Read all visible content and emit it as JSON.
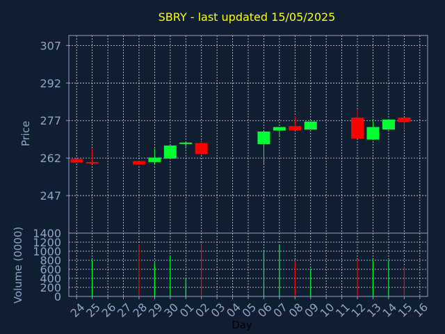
{
  "chart_data": [
    {
      "type": "candlestick",
      "title": "SBRY - last updated 15/05/2025",
      "ylabel": "Price",
      "ylim": [
        232,
        311
      ],
      "yticks": [
        247,
        262,
        277,
        292,
        307
      ],
      "grid": true,
      "categories": [
        "24",
        "25",
        "26",
        "27",
        "28",
        "29",
        "30",
        "01",
        "02",
        "03",
        "04",
        "05",
        "06",
        "07",
        "08",
        "09",
        "10",
        "11",
        "12",
        "13",
        "14",
        "15",
        "16"
      ],
      "candles": [
        {
          "day": "24",
          "open": 261.6,
          "high": 261.6,
          "low": 260.2,
          "close": 260.2
        },
        {
          "day": "25",
          "open": 260.4,
          "high": 265.8,
          "low": 259.6,
          "close": 260.0
        },
        {
          "day": "28",
          "open": 260.8,
          "high": 260.8,
          "low": 259.2,
          "close": 259.4
        },
        {
          "day": "29",
          "open": 260.4,
          "high": 265.8,
          "low": 259.8,
          "close": 262.2
        },
        {
          "day": "30",
          "open": 261.8,
          "high": 267.0,
          "low": 261.6,
          "close": 267.0
        },
        {
          "day": "01",
          "open": 267.8,
          "high": 268.6,
          "low": 265.8,
          "close": 268.2
        },
        {
          "day": "02",
          "open": 268.0,
          "high": 269.0,
          "low": 263.4,
          "close": 263.6
        },
        {
          "day": "06",
          "open": 267.6,
          "high": 272.6,
          "low": 259.8,
          "close": 272.6
        },
        {
          "day": "07",
          "open": 273.0,
          "high": 274.4,
          "low": 270.6,
          "close": 274.4
        },
        {
          "day": "08",
          "open": 274.8,
          "high": 278.8,
          "low": 273.0,
          "close": 273.0
        },
        {
          "day": "09",
          "open": 273.4,
          "high": 276.6,
          "low": 273.4,
          "close": 276.6
        },
        {
          "day": "12",
          "open": 278.2,
          "high": 281.6,
          "low": 269.8,
          "close": 269.8
        },
        {
          "day": "13",
          "open": 269.4,
          "high": 276.8,
          "low": 269.2,
          "close": 274.4
        },
        {
          "day": "14",
          "open": 273.4,
          "high": 277.6,
          "low": 273.4,
          "close": 277.4
        },
        {
          "day": "15",
          "open": 278.2,
          "high": 278.2,
          "low": 273.0,
          "close": 276.4
        }
      ]
    },
    {
      "type": "bar",
      "ylabel": "Volume (0000)",
      "xlabel": "Day",
      "ylim": [
        0,
        1400
      ],
      "yticks": [
        0,
        200,
        400,
        600,
        800,
        1000,
        1200,
        1400
      ],
      "grid": true,
      "categories": [
        "24",
        "25",
        "26",
        "27",
        "28",
        "29",
        "30",
        "01",
        "02",
        "03",
        "04",
        "05",
        "06",
        "07",
        "08",
        "09",
        "10",
        "11",
        "12",
        "13",
        "14",
        "15",
        "16"
      ],
      "values": [
        {
          "day": "25",
          "volume": 800,
          "direction": "up"
        },
        {
          "day": "28",
          "volume": 1150,
          "direction": "down"
        },
        {
          "day": "29",
          "volume": 750,
          "direction": "up"
        },
        {
          "day": "30",
          "volume": 900,
          "direction": "up"
        },
        {
          "day": "01",
          "volume": 420,
          "direction": "up"
        },
        {
          "day": "02",
          "volume": 1180,
          "direction": "down"
        },
        {
          "day": "06",
          "volume": 1030,
          "direction": "up"
        },
        {
          "day": "07",
          "volume": 1130,
          "direction": "up"
        },
        {
          "day": "08",
          "volume": 780,
          "direction": "down"
        },
        {
          "day": "09",
          "volume": 610,
          "direction": "up"
        },
        {
          "day": "12",
          "volume": 800,
          "direction": "down"
        },
        {
          "day": "13",
          "volume": 800,
          "direction": "up"
        },
        {
          "day": "14",
          "volume": 800,
          "direction": "up"
        },
        {
          "day": "15",
          "volume": 660,
          "direction": "down"
        }
      ]
    }
  ],
  "colors": {
    "background": "#0f1e30",
    "title": "#ffff00",
    "axis_text": "#8fa6c8",
    "grid": "#ffffff",
    "up": "#00ff33",
    "down": "#ff0000",
    "xlabel": "#000000"
  }
}
